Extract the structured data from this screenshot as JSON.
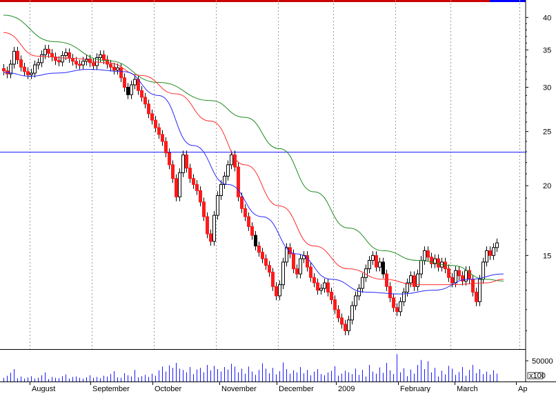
{
  "chart_data": {
    "type": "candlestick",
    "y_scale": "log",
    "price_axis": {
      "ticks": [
        15,
        20,
        25,
        30,
        35,
        40
      ],
      "tick_labels": [
        "15",
        "20",
        "25",
        "30",
        "35",
        "40"
      ],
      "range": [
        10.2,
        42.5
      ]
    },
    "volume_axis": {
      "tick_label": "50000",
      "multiplier_label": "x100",
      "max": 75000
    },
    "month_labels": [
      "August",
      "September",
      "October",
      "November",
      "December",
      "2009",
      "February",
      "March",
      "Ap"
    ],
    "horizontal_line": {
      "value": 23.0,
      "color": "#1a1aff"
    },
    "colors": {
      "up_candle": "#ffffff",
      "down_candle": "#ff1a1a",
      "dark_candle": "#000000",
      "ma_short": "#2626ff",
      "ma_mid": "#ff2a2a",
      "ma_long": "#1f8a1f",
      "volume": "#1a1aff",
      "grid": "#9a9a9a",
      "top_band": "#0000ff",
      "top_band_accent": "#cc0000"
    },
    "closes": [
      32.1,
      31.7,
      33.0,
      34.8,
      33.6,
      32.6,
      32.0,
      31.6,
      31.8,
      32.9,
      33.2,
      34.3,
      35.1,
      34.5,
      34.0,
      33.5,
      33.3,
      34.2,
      34.6,
      33.8,
      33.4,
      33.0,
      32.9,
      33.4,
      33.7,
      33.2,
      32.8,
      33.9,
      34.3,
      33.6,
      33.0,
      32.6,
      32.2,
      32.5,
      31.2,
      30.0,
      29.1,
      30.3,
      31.0,
      29.6,
      28.8,
      28.0,
      26.9,
      26.2,
      25.4,
      24.7,
      24.0,
      22.9,
      21.8,
      20.6,
      19.1,
      21.1,
      22.7,
      21.5,
      20.6,
      20.1,
      19.6,
      18.7,
      17.6,
      16.4,
      15.9,
      17.7,
      19.2,
      20.1,
      20.8,
      21.8,
      22.7,
      21.6,
      19.1,
      18.2,
      17.6,
      16.9,
      16.3,
      15.6,
      15.2,
      14.8,
      14.4,
      14.0,
      13.2,
      12.7,
      13.3,
      14.6,
      15.5,
      15.1,
      14.2,
      13.9,
      14.8,
      15.0,
      14.3,
      13.7,
      13.4,
      13.0,
      13.1,
      13.4,
      12.9,
      12.5,
      12.0,
      11.6,
      11.3,
      11.0,
      11.5,
      12.2,
      12.7,
      13.1,
      13.7,
      14.2,
      14.7,
      15.0,
      14.3,
      14.6,
      13.9,
      13.2,
      12.6,
      12.1,
      11.9,
      12.4,
      12.9,
      13.4,
      13.8,
      13.2,
      13.9,
      14.7,
      15.3,
      14.9,
      14.5,
      14.8,
      14.3,
      14.6,
      14.2,
      13.7,
      13.4,
      14.1,
      13.8,
      13.5,
      14.1,
      13.6,
      12.9,
      12.4,
      13.6,
      14.6,
      15.3,
      15.0,
      15.5,
      15.8
    ],
    "volumes": [
      9000,
      14000,
      21000,
      30000,
      8000,
      12000,
      7000,
      10000,
      13000,
      7000,
      9000,
      15000,
      22000,
      6000,
      11000,
      9000,
      8000,
      13000,
      17000,
      7000,
      11000,
      12000,
      9000,
      7000,
      10000,
      15000,
      9000,
      11000,
      8000,
      14000,
      12000,
      18000,
      25000,
      10000,
      9000,
      20000,
      15000,
      12000,
      28000,
      10000,
      13000,
      16000,
      11000,
      19000,
      14000,
      27000,
      36000,
      24000,
      39000,
      33000,
      45000,
      31000,
      28000,
      22000,
      35000,
      18000,
      29000,
      33000,
      22000,
      40000,
      27000,
      38000,
      30000,
      24000,
      35000,
      29000,
      43000,
      36000,
      22000,
      31000,
      19000,
      36000,
      24000,
      16000,
      28000,
      44000,
      31000,
      20000,
      33000,
      17000,
      25000,
      46000,
      30000,
      19000,
      27000,
      22000,
      35000,
      20000,
      28000,
      15000,
      24000,
      30000,
      18000,
      15000,
      22000,
      26000,
      37000,
      14000,
      19000,
      26000,
      22000,
      18000,
      31000,
      16000,
      28000,
      12000,
      40000,
      24000,
      19000,
      34000,
      21000,
      45000,
      27000,
      18000,
      66000,
      22000,
      32000,
      13000,
      29000,
      19000,
      40000,
      52000,
      30000,
      49000,
      22000,
      33000,
      12000,
      26000,
      17000,
      38000,
      31000,
      16000,
      23000,
      35000,
      14000,
      28000,
      40000,
      20000,
      30000,
      18000,
      24000,
      17000,
      27000,
      19000
    ],
    "ma_short_line": [
      [
        0,
        31.9
      ],
      [
        8,
        31.4
      ],
      [
        15,
        31.8
      ],
      [
        25,
        32.3
      ],
      [
        35,
        32.0
      ],
      [
        45,
        29.0
      ],
      [
        55,
        23.6
      ],
      [
        65,
        20.1
      ],
      [
        75,
        17.6
      ],
      [
        85,
        15.1
      ],
      [
        95,
        13.6
      ],
      [
        105,
        12.9
      ],
      [
        115,
        12.8
      ],
      [
        125,
        13.0
      ],
      [
        135,
        13.6
      ],
      [
        145,
        13.9
      ]
    ],
    "ma_mid_line": [
      [
        0,
        37.6
      ],
      [
        10,
        34.1
      ],
      [
        20,
        33.8
      ],
      [
        30,
        33.2
      ],
      [
        40,
        31.5
      ],
      [
        50,
        29.2
      ],
      [
        60,
        26.1
      ],
      [
        70,
        21.8
      ],
      [
        80,
        18.4
      ],
      [
        90,
        15.6
      ],
      [
        100,
        14.2
      ],
      [
        110,
        13.6
      ],
      [
        120,
        13.3
      ],
      [
        130,
        13.3
      ],
      [
        140,
        13.4
      ],
      [
        145,
        13.6
      ]
    ],
    "ma_long_line": [
      [
        0,
        40.4
      ],
      [
        15,
        36.2
      ],
      [
        30,
        33.5
      ],
      [
        45,
        30.6
      ],
      [
        60,
        28.4
      ],
      [
        70,
        26.5
      ],
      [
        80,
        23.3
      ],
      [
        90,
        19.5
      ],
      [
        100,
        16.8
      ],
      [
        110,
        15.3
      ],
      [
        120,
        14.7
      ],
      [
        130,
        14.4
      ],
      [
        140,
        13.6
      ],
      [
        145,
        13.5
      ]
    ]
  }
}
